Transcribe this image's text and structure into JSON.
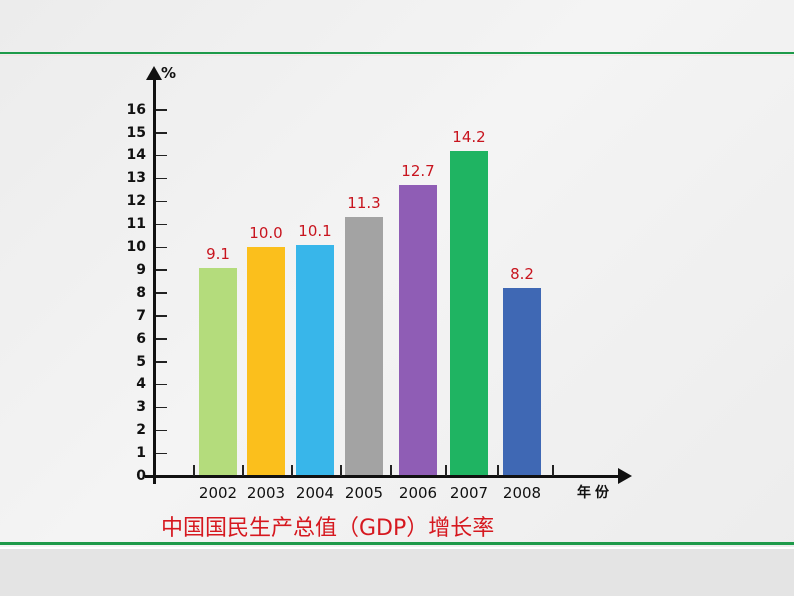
{
  "chart_data": {
    "type": "bar",
    "title": "中国国民生产总值（GDP）增长率",
    "xlabel": "年份",
    "ylabel": "%",
    "categories": [
      "2002",
      "2003",
      "2004",
      "2005",
      "2006",
      "2007",
      "2008"
    ],
    "values": [
      9.1,
      10.0,
      10.1,
      11.3,
      12.7,
      14.2,
      8.2
    ],
    "value_labels": [
      "9.1",
      "10.0",
      "10.1",
      "11.3",
      "12.7",
      "14.2",
      "8.2"
    ],
    "colors": [
      "#b4dc7c",
      "#fbbf1c",
      "#38b6ea",
      "#a3a3a3",
      "#8f5db5",
      "#1fb462",
      "#3f68b4"
    ],
    "ylim": [
      0,
      16
    ],
    "yticks": [
      "0",
      "1",
      "2",
      "3",
      "4",
      "5",
      "6",
      "7",
      "8",
      "9",
      "10",
      "11",
      "12",
      "13",
      "14",
      "15",
      "16"
    ],
    "grid": false,
    "legend": null
  },
  "page": {
    "rule_color": "#1e9a4a",
    "value_label_color": "#c8141e",
    "caption_color": "#d6181f"
  }
}
